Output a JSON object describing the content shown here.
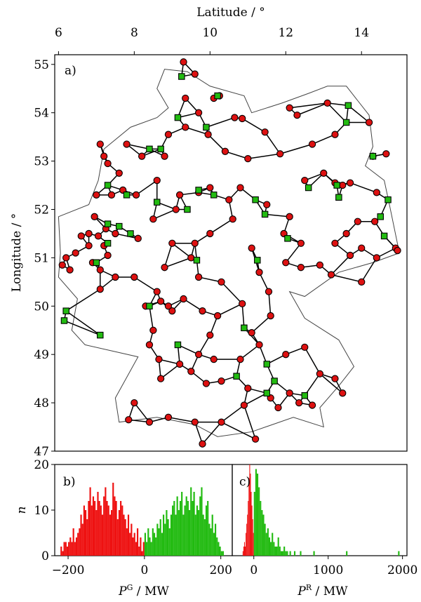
{
  "figure": {
    "colors": {
      "grid_node": "#dd1111",
      "generator_node": "#22bb11",
      "edge": "#000000",
      "border": "#555555"
    }
  },
  "chart_data": [
    {
      "type": "scatter",
      "panel_label": "a)",
      "xlabel": "Latitude / °",
      "ylabel": "Longitude / °",
      "xlim": [
        5.9,
        15.2
      ],
      "ylim": [
        47,
        55.2
      ],
      "xticks": [
        "6",
        "8",
        "10",
        "12",
        "14"
      ],
      "yticks": [
        "47",
        "48",
        "49",
        "50",
        "51",
        "52",
        "53",
        "54",
        "55"
      ],
      "series": [
        {
          "marker": "circle",
          "color": "#dd1111",
          "points": [
            [
              9.3,
              55.05
            ],
            [
              9.6,
              54.8
            ],
            [
              9.35,
              54.3
            ],
            [
              10.1,
              54.3
            ],
            [
              10.25,
              54.35
            ],
            [
              9.7,
              54.0
            ],
            [
              9.35,
              53.7
            ],
            [
              8.9,
              53.55
            ],
            [
              9.95,
              53.55
            ],
            [
              10.65,
              53.9
            ],
            [
              10.85,
              53.88
            ],
            [
              11.45,
              53.6
            ],
            [
              12.1,
              54.1
            ],
            [
              12.3,
              53.95
            ],
            [
              13.1,
              54.2
            ],
            [
              14.2,
              53.8
            ],
            [
              13.3,
              53.55
            ],
            [
              14.65,
              53.15
            ],
            [
              14.3,
              53.1
            ],
            [
              13.0,
              52.75
            ],
            [
              13.3,
              52.55
            ],
            [
              13.5,
              52.5
            ],
            [
              14.4,
              52.35
            ],
            [
              13.7,
              52.55
            ],
            [
              12.5,
              52.6
            ],
            [
              11.5,
              52.1
            ],
            [
              10.5,
              52.2
            ],
            [
              10.0,
              52.45
            ],
            [
              9.7,
              52.35
            ],
            [
              9.2,
              52.3
            ],
            [
              8.6,
              52.6
            ],
            [
              8.05,
              52.3
            ],
            [
              7.7,
              52.4
            ],
            [
              7.4,
              52.3
            ],
            [
              8.2,
              53.1
            ],
            [
              8.8,
              53.1
            ],
            [
              7.8,
              53.35
            ],
            [
              7.1,
              53.35
            ],
            [
              7.2,
              53.1
            ],
            [
              7.3,
              52.95
            ],
            [
              7.6,
              52.75
            ],
            [
              7.0,
              52.3
            ],
            [
              6.95,
              51.85
            ],
            [
              7.25,
              51.6
            ],
            [
              7.5,
              51.5
            ],
            [
              7.05,
              51.45
            ],
            [
              6.8,
              51.5
            ],
            [
              6.6,
              51.45
            ],
            [
              6.8,
              51.25
            ],
            [
              7.2,
              51.25
            ],
            [
              6.45,
              51.1
            ],
            [
              6.2,
              51.0
            ],
            [
              6.1,
              50.85
            ],
            [
              6.3,
              50.75
            ],
            [
              7.1,
              50.75
            ],
            [
              7.5,
              50.6
            ],
            [
              7.1,
              50.35
            ],
            [
              8.0,
              50.6
            ],
            [
              8.6,
              50.3
            ],
            [
              8.7,
              50.1
            ],
            [
              8.9,
              50.0
            ],
            [
              8.3,
              50.0
            ],
            [
              9.0,
              49.9
            ],
            [
              8.5,
              49.5
            ],
            [
              8.4,
              49.2
            ],
            [
              8.65,
              48.9
            ],
            [
              9.2,
              48.8
            ],
            [
              9.5,
              48.65
            ],
            [
              8.7,
              48.5
            ],
            [
              8.0,
              48.0
            ],
            [
              7.85,
              47.65
            ],
            [
              8.4,
              47.6
            ],
            [
              8.9,
              47.7
            ],
            [
              9.6,
              47.6
            ],
            [
              9.8,
              47.15
            ],
            [
              10.3,
              47.6
            ],
            [
              10.9,
              47.95
            ],
            [
              11.0,
              48.3
            ],
            [
              10.3,
              48.45
            ],
            [
              9.9,
              48.4
            ],
            [
              10.8,
              48.9
            ],
            [
              11.3,
              49.2
            ],
            [
              11.1,
              49.45
            ],
            [
              12.0,
              49.0
            ],
            [
              12.5,
              49.15
            ],
            [
              12.9,
              48.6
            ],
            [
              13.3,
              48.5
            ],
            [
              13.5,
              48.2
            ],
            [
              12.1,
              48.2
            ],
            [
              12.35,
              48.0
            ],
            [
              11.6,
              48.1
            ],
            [
              11.8,
              47.9
            ],
            [
              12.7,
              47.95
            ],
            [
              11.2,
              47.25
            ],
            [
              10.85,
              50.05
            ],
            [
              11.55,
              50.3
            ],
            [
              11.3,
              50.7
            ],
            [
              12.0,
              50.9
            ],
            [
              12.4,
              50.8
            ],
            [
              12.9,
              50.85
            ],
            [
              13.2,
              50.65
            ],
            [
              13.7,
              51.05
            ],
            [
              14.0,
              51.2
            ],
            [
              14.4,
              51.0
            ],
            [
              14.9,
              51.2
            ],
            [
              14.0,
              50.5
            ],
            [
              13.3,
              51.3
            ],
            [
              12.4,
              51.3
            ],
            [
              11.95,
              51.5
            ],
            [
              11.1,
              51.2
            ],
            [
              10.6,
              51.8
            ],
            [
              10.0,
              51.5
            ],
            [
              9.6,
              51.3
            ],
            [
              9.0,
              51.3
            ],
            [
              9.5,
              51.0
            ],
            [
              8.8,
              50.8
            ],
            [
              10.3,
              50.5
            ],
            [
              9.7,
              50.6
            ],
            [
              9.3,
              50.15
            ],
            [
              11.0,
              53.05
            ],
            [
              11.85,
              53.15
            ],
            [
              12.7,
              53.35
            ],
            [
              10.4,
              53.2
            ],
            [
              10.8,
              52.45
            ],
            [
              12.1,
              51.85
            ],
            [
              13.9,
              51.75
            ],
            [
              14.35,
              51.75
            ],
            [
              13.6,
              51.5
            ],
            [
              14.95,
              51.15
            ],
            [
              11.6,
              49.8
            ],
            [
              10.2,
              49.8
            ],
            [
              9.8,
              49.9
            ],
            [
              10.0,
              49.4
            ],
            [
              9.7,
              49.0
            ],
            [
              10.1,
              48.9
            ],
            [
              6.9,
              50.9
            ],
            [
              7.3,
              51.05
            ],
            [
              8.1,
              51.4
            ],
            [
              8.5,
              51.8
            ],
            [
              9.1,
              52.0
            ]
          ]
        },
        {
          "marker": "square",
          "color": "#22bb11",
          "points": [
            [
              9.25,
              54.75
            ],
            [
              10.2,
              54.35
            ],
            [
              9.15,
              53.9
            ],
            [
              9.9,
              53.7
            ],
            [
              8.7,
              53.25
            ],
            [
              8.4,
              53.25
            ],
            [
              7.3,
              52.5
            ],
            [
              7.8,
              52.3
            ],
            [
              9.7,
              52.4
            ],
            [
              10.1,
              52.3
            ],
            [
              9.4,
              52.0
            ],
            [
              8.6,
              52.15
            ],
            [
              11.2,
              52.2
            ],
            [
              11.45,
              51.9
            ],
            [
              12.05,
              51.4
            ],
            [
              12.6,
              52.45
            ],
            [
              13.35,
              52.5
            ],
            [
              13.4,
              52.25
            ],
            [
              13.6,
              53.8
            ],
            [
              14.3,
              53.1
            ],
            [
              13.65,
              54.15
            ],
            [
              14.5,
              51.85
            ],
            [
              14.6,
              51.45
            ],
            [
              14.7,
              52.2
            ],
            [
              11.25,
              50.95
            ],
            [
              9.65,
              50.95
            ],
            [
              7.3,
              51.7
            ],
            [
              7.6,
              51.65
            ],
            [
              7.3,
              51.3
            ],
            [
              7.9,
              51.5
            ],
            [
              6.2,
              49.9
            ],
            [
              6.15,
              49.7
            ],
            [
              7.1,
              49.4
            ],
            [
              8.4,
              50.0
            ],
            [
              9.15,
              49.2
            ],
            [
              10.9,
              49.55
            ],
            [
              11.5,
              48.8
            ],
            [
              11.7,
              48.45
            ],
            [
              11.5,
              48.2
            ],
            [
              12.5,
              48.15
            ],
            [
              10.7,
              48.55
            ],
            [
              7.0,
              50.9
            ]
          ]
        }
      ],
      "edges_note": "transmission lines connecting nodes"
    },
    {
      "type": "bar",
      "panel_label": "b)",
      "xlabel": "P",
      "xlabel_sup": "G",
      "xlabel_unit": " / MW",
      "ylabel": "n",
      "xlim": [
        -235,
        230
      ],
      "ylim": [
        0,
        20
      ],
      "xticks": [
        "−200",
        "0",
        "200"
      ],
      "yticks": [
        "0",
        "10",
        "20"
      ],
      "bin_width": 4,
      "series": [
        {
          "color": "#ee1111",
          "bin_start": -220,
          "values": [
            2,
            1,
            3,
            3,
            2,
            3,
            4,
            3,
            6,
            3,
            4,
            5,
            6,
            9,
            7,
            11,
            10,
            8,
            12,
            15,
            11,
            13,
            12,
            10,
            14,
            12,
            11,
            9,
            13,
            15,
            12,
            11,
            9,
            10,
            16,
            13,
            12,
            8,
            10,
            12,
            11,
            9,
            8,
            6,
            9,
            5,
            7,
            4,
            5,
            3,
            6,
            2,
            4,
            1,
            3
          ]
        },
        {
          "color": "#22bb11",
          "bin_start": 0,
          "values": [
            5,
            3,
            6,
            4,
            3,
            6,
            5,
            4,
            7,
            6,
            8,
            5,
            9,
            7,
            10,
            8,
            6,
            9,
            11,
            12,
            9,
            13,
            10,
            12,
            14,
            9,
            11,
            13,
            12,
            10,
            15,
            12,
            14,
            9,
            11,
            10,
            13,
            15,
            9,
            8,
            11,
            12,
            7,
            6,
            9,
            5,
            7,
            4,
            3,
            2,
            1,
            1
          ]
        }
      ]
    },
    {
      "type": "bar",
      "panel_label": "c)",
      "xlabel": "P",
      "xlabel_sup": "R",
      "xlabel_unit": " / MW",
      "ylabel": "",
      "xlim": [
        -290,
        2060
      ],
      "ylim": [
        0,
        20
      ],
      "xticks": [
        "0",
        "1000",
        "2000"
      ],
      "yticks": [],
      "series": [
        {
          "color": "#ee1111",
          "bin_start": -150,
          "bin_width": 10,
          "values": [
            1,
            2,
            3,
            2,
            5,
            7,
            9,
            12,
            17,
            20,
            18,
            14,
            11,
            8,
            5
          ]
        },
        {
          "color": "#22bb11",
          "bin_start": 0,
          "bin_width": 20,
          "values": [
            14,
            19,
            18,
            15,
            12,
            10,
            9,
            7,
            5,
            6,
            4,
            3,
            5,
            3,
            2,
            2,
            4,
            2,
            1,
            1,
            2,
            1,
            1,
            0,
            1,
            0,
            0,
            1,
            0,
            0,
            0,
            1,
            0,
            0,
            0,
            0,
            0,
            0,
            0,
            0,
            1,
            0,
            0,
            0,
            0,
            0,
            0,
            0,
            0,
            0,
            0,
            0,
            0,
            0,
            0,
            0,
            0,
            0,
            0,
            0,
            0,
            0,
            1,
            0,
            0,
            0,
            0,
            0,
            0,
            0,
            0,
            0,
            0,
            0,
            0,
            0,
            0,
            0,
            0,
            0,
            0,
            0,
            0,
            0,
            0,
            0,
            0,
            0,
            0,
            0,
            0,
            0,
            0,
            0,
            0,
            0,
            0,
            1
          ]
        }
      ]
    }
  ]
}
